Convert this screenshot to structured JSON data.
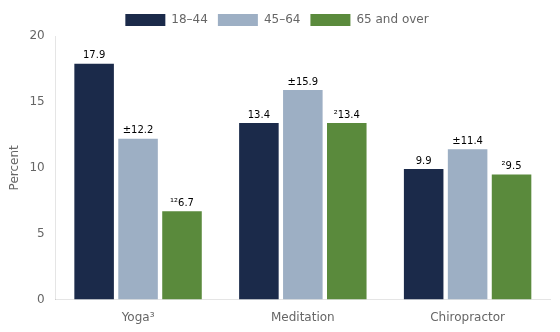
{
  "chart_data": {
    "type": "bar",
    "categories": [
      "Yoga³",
      "Meditation",
      "Chiropractor"
    ],
    "series": [
      {
        "name": "18–44",
        "color": "#1B2A4A",
        "values": [
          17.9,
          13.4,
          9.9
        ],
        "value_labels": [
          "17.9",
          "13.4",
          "9.9"
        ]
      },
      {
        "name": "45–64",
        "color": "#9DAFC4",
        "values": [
          12.2,
          15.9,
          11.4
        ],
        "value_labels": [
          "±12.2",
          "±15.9",
          "±11.4"
        ]
      },
      {
        "name": "65 and over",
        "color": "#5A8A3C",
        "values": [
          6.7,
          13.4,
          9.5
        ],
        "value_labels": [
          "¹²6.7",
          "²13.4",
          "²9.5"
        ]
      }
    ],
    "ylabel": "Percent",
    "ylim": [
      0,
      20
    ],
    "yticks": [
      0,
      5,
      10,
      15,
      20
    ],
    "grid": false,
    "legend": "top",
    "data_labels": true
  }
}
